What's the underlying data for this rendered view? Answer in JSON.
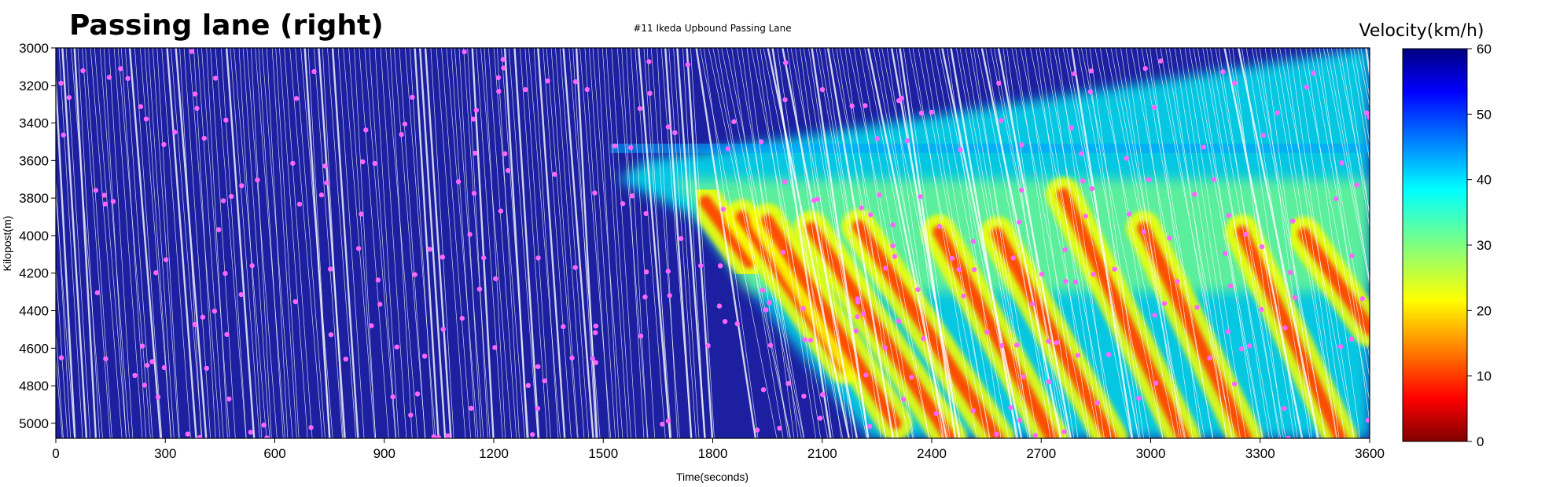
{
  "heading": "Passing lane (right)",
  "chart_data": {
    "type": "heatmap",
    "title": "#11 Ikeda Upbound Passing Lane",
    "xlabel": "Time(seconds)",
    "ylabel": "Kilopost(m)",
    "xlim": [
      0,
      3600
    ],
    "ylim": [
      3000,
      5080
    ],
    "y_inverted": true,
    "x_ticks": [
      0,
      300,
      600,
      900,
      1200,
      1500,
      1800,
      2100,
      2400,
      2700,
      3000,
      3300,
      3600
    ],
    "y_ticks": [
      3000,
      3200,
      3400,
      3600,
      3800,
      4000,
      4200,
      4400,
      4600,
      4800,
      5000
    ],
    "colorbar": {
      "label": "Velocity(km/h)",
      "range": [
        0,
        60
      ],
      "ticks": [
        0,
        10,
        20,
        30,
        40,
        50,
        60
      ],
      "colormap": "jet"
    },
    "free_flow_velocity": 55,
    "congestion_onset": {
      "time": 1540,
      "kilopost": 3700
    },
    "congestion_waves": [
      {
        "t_start": 1780,
        "kp_start": 3820,
        "t_end": 1900,
        "kp_end": 4140
      },
      {
        "t_start": 1880,
        "kp_start": 3900,
        "t_end": 2160,
        "kp_end": 4700
      },
      {
        "t_start": 1950,
        "kp_start": 3920,
        "t_end": 2300,
        "kp_end": 5000
      },
      {
        "t_start": 2070,
        "kp_start": 3960,
        "t_end": 2450,
        "kp_end": 5080
      },
      {
        "t_start": 2200,
        "kp_start": 3950,
        "t_end": 2580,
        "kp_end": 5080
      },
      {
        "t_start": 2420,
        "kp_start": 3980,
        "t_end": 2730,
        "kp_end": 5080
      },
      {
        "t_start": 2580,
        "kp_start": 3990,
        "t_end": 2890,
        "kp_end": 5080
      },
      {
        "t_start": 2760,
        "kp_start": 3780,
        "t_end": 3090,
        "kp_end": 5080
      },
      {
        "t_start": 2980,
        "kp_start": 3960,
        "t_end": 3260,
        "kp_end": 5080
      },
      {
        "t_start": 3250,
        "kp_start": 3980,
        "t_end": 3520,
        "kp_end": 5080
      },
      {
        "t_start": 3420,
        "kp_start": 3990,
        "t_end": 3600,
        "kp_end": 4500
      }
    ],
    "lane_change_points": {
      "color": "#ff66ff",
      "series_name": ""
    }
  }
}
